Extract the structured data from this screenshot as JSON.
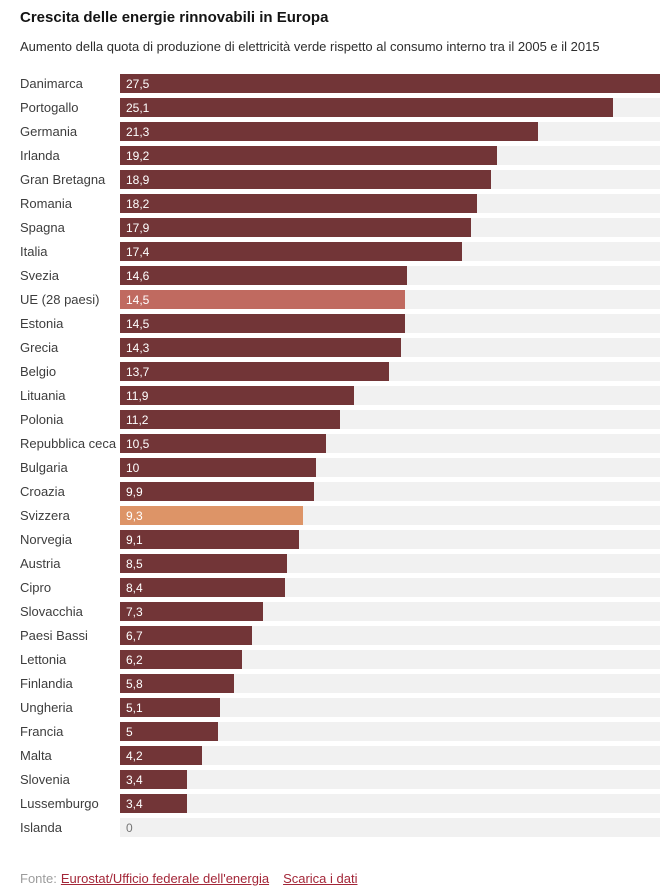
{
  "header": {
    "title": "Crescita delle energie rinnovabili in Europa",
    "subtitle": "Aumento della quota di produzione di elettricità verde rispetto al consumo interno tra il 2005 e il 2015"
  },
  "footer": {
    "source_label": "Fonte:",
    "source_link": "Eurostat/Ufficio federale dell'energia",
    "download_link": "Scarica i dati"
  },
  "colors": {
    "bar_default": "#723537",
    "bar_eu": "#c06a60",
    "bar_ch": "#dd9467",
    "track": "#f1f1f1",
    "value_text": "#ffffff",
    "zero_value_text": "#767676",
    "link": "#a32638",
    "label_text": "#3d3d3d"
  },
  "chart_data": {
    "type": "bar",
    "orientation": "horizontal",
    "title": "Crescita delle energie rinnovabili in Europa",
    "subtitle": "Aumento della quota di produzione di elettricità verde rispetto al consumo interno tra il 2005 e il 2015",
    "xlabel": "",
    "ylabel": "",
    "value_range": [
      0,
      27.5
    ],
    "grid": false,
    "legend": false,
    "unit": "percentage points",
    "rows": [
      {
        "label": "Danimarca",
        "value": 27.5,
        "display": "27,5",
        "variant": "default"
      },
      {
        "label": "Portogallo",
        "value": 25.1,
        "display": "25,1",
        "variant": "default"
      },
      {
        "label": "Germania",
        "value": 21.3,
        "display": "21,3",
        "variant": "default"
      },
      {
        "label": "Irlanda",
        "value": 19.2,
        "display": "19,2",
        "variant": "default"
      },
      {
        "label": "Gran Bretagna",
        "value": 18.9,
        "display": "18,9",
        "variant": "default"
      },
      {
        "label": "Romania",
        "value": 18.2,
        "display": "18,2",
        "variant": "default"
      },
      {
        "label": "Spagna",
        "value": 17.9,
        "display": "17,9",
        "variant": "default"
      },
      {
        "label": "Italia",
        "value": 17.4,
        "display": "17,4",
        "variant": "default"
      },
      {
        "label": "Svezia",
        "value": 14.6,
        "display": "14,6",
        "variant": "default"
      },
      {
        "label": "UE (28 paesi)",
        "value": 14.5,
        "display": "14,5",
        "variant": "eu"
      },
      {
        "label": "Estonia",
        "value": 14.5,
        "display": "14,5",
        "variant": "default"
      },
      {
        "label": "Grecia",
        "value": 14.3,
        "display": "14,3",
        "variant": "default"
      },
      {
        "label": "Belgio",
        "value": 13.7,
        "display": "13,7",
        "variant": "default"
      },
      {
        "label": "Lituania",
        "value": 11.9,
        "display": "11,9",
        "variant": "default"
      },
      {
        "label": "Polonia",
        "value": 11.2,
        "display": "11,2",
        "variant": "default"
      },
      {
        "label": "Repubblica ceca",
        "value": 10.5,
        "display": "10,5",
        "variant": "default"
      },
      {
        "label": "Bulgaria",
        "value": 10,
        "display": "10",
        "variant": "default"
      },
      {
        "label": "Croazia",
        "value": 9.9,
        "display": "9,9",
        "variant": "default"
      },
      {
        "label": "Svizzera",
        "value": 9.3,
        "display": "9,3",
        "variant": "ch"
      },
      {
        "label": "Norvegia",
        "value": 9.1,
        "display": "9,1",
        "variant": "default"
      },
      {
        "label": "Austria",
        "value": 8.5,
        "display": "8,5",
        "variant": "default"
      },
      {
        "label": "Cipro",
        "value": 8.4,
        "display": "8,4",
        "variant": "default"
      },
      {
        "label": "Slovacchia",
        "value": 7.3,
        "display": "7,3",
        "variant": "default"
      },
      {
        "label": "Paesi Bassi",
        "value": 6.7,
        "display": "6,7",
        "variant": "default"
      },
      {
        "label": "Lettonia",
        "value": 6.2,
        "display": "6,2",
        "variant": "default"
      },
      {
        "label": "Finlandia",
        "value": 5.8,
        "display": "5,8",
        "variant": "default"
      },
      {
        "label": "Ungheria",
        "value": 5.1,
        "display": "5,1",
        "variant": "default"
      },
      {
        "label": "Francia",
        "value": 5,
        "display": "5",
        "variant": "default"
      },
      {
        "label": "Malta",
        "value": 4.2,
        "display": "4,2",
        "variant": "default"
      },
      {
        "label": "Slovenia",
        "value": 3.4,
        "display": "3,4",
        "variant": "default"
      },
      {
        "label": "Lussemburgo",
        "value": 3.4,
        "display": "3,4",
        "variant": "default"
      },
      {
        "label": "Islanda",
        "value": 0,
        "display": "0",
        "variant": "zero"
      }
    ]
  }
}
